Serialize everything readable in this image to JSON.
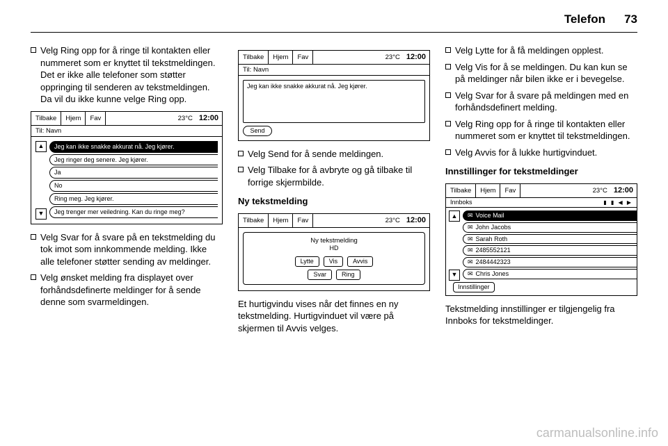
{
  "header": {
    "section": "Telefon",
    "page": "73"
  },
  "watermark": "carmanualsonline.info",
  "common": {
    "tabs": {
      "back": "Tilbake",
      "home": "Hjem",
      "fav": "Fav"
    },
    "temp": "23°C",
    "clock": "12:00",
    "to_label": "Til: Navn"
  },
  "col1": {
    "b1": "Velg Ring opp for å ringe til kontakten eller nummeret som er knyttet til tekstmeldingen. Det er ikke alle telefoner som støtter oppringing til senderen av tekstmeldingen. Da vil du ikke kunne velge Ring opp.",
    "scr1_rows": [
      "Jeg kan ikke snakke akkurat nå. Jeg kjører.",
      "Jeg ringer deg senere. Jeg kjører.",
      "Ja",
      "No",
      "Ring meg. Jeg kjører.",
      "Jeg trenger mer veiledning. Kan du ringe meg?"
    ],
    "b2": "Velg Svar for å svare på en tekstmelding du tok imot som innkommende melding. Ikke alle telefoner støtter sending av meldinger.",
    "b3": "Velg ønsket melding fra displayet over forhåndsdefinerte meldinger for å sende denne som svarmeldingen."
  },
  "col2": {
    "scr2_text": "Jeg kan ikke snakke akkurat nå. Jeg kjører.",
    "scr2_send": "Send",
    "b1": "Velg Send for å sende meldingen.",
    "b2": "Velg Tilbake for å avbryte og gå tilbake til forrige skjermbilde.",
    "subhead": "Ny tekstmelding",
    "scr3_title": "Ny tekstmelding",
    "scr3_sub": "HD",
    "scr3_btns_row1": [
      "Lytte",
      "Vis",
      "Avvis"
    ],
    "scr3_btns_row2": [
      "Svar",
      "Ring"
    ],
    "tail": "Et hurtigvindu vises når det finnes en ny tekstmelding. Hurtigvinduet vil være på skjermen til Avvis velges."
  },
  "col3": {
    "b1": "Velg Lytte for å få meldingen opplest.",
    "b2": "Velg Vis for å se meldingen. Du kan kun se på meldinger når bilen ikke er i bevegelse.",
    "b3": "Velg Svar for å svare på meldingen med en forhåndsdefinert melding.",
    "b4": "Velg Ring opp for å ringe til kontakten eller nummeret som er knyttet til tekstmeldingen.",
    "b5": "Velg Avvis for å lukke hurtigvinduet.",
    "subhead": "Innstillinger for tekstmeldinger",
    "scr4_inbox_label": "Innboks",
    "scr4_rows": [
      "Voice Mail",
      "John Jacobs",
      "Sarah Roth",
      "2485552121",
      "2484442323",
      "Chris Jones"
    ],
    "scr4_settings": "Innstillinger",
    "tail": "Tekstmelding innstillinger er tilgjengelig fra Innboks for tekstmeldinger."
  }
}
